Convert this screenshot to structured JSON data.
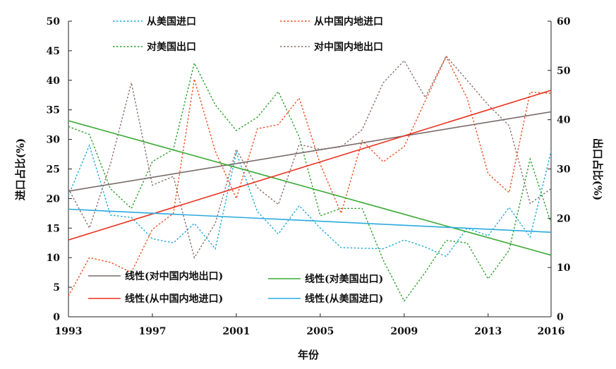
{
  "chart_data": {
    "type": "line",
    "x_title": "年份",
    "y_left_title": "进口占比(%)",
    "y_right_title": "出口占比(%)",
    "xlim": [
      1993,
      2016
    ],
    "ylim_left": [
      0,
      50
    ],
    "ylim_right": [
      0,
      60
    ],
    "x_ticks": [
      1993,
      1997,
      2001,
      2005,
      2009,
      2013,
      2016
    ],
    "y_left_ticks": [
      0,
      5,
      10,
      15,
      20,
      25,
      30,
      35,
      40,
      45,
      50
    ],
    "y_right_ticks": [
      0,
      10,
      20,
      30,
      40,
      50,
      60
    ],
    "x_tick_labels": [
      "1993",
      "1997",
      "2001",
      "2005",
      "2009",
      "2013",
      "2016"
    ],
    "y_left_tick_labels": [
      "0",
      "5",
      "10",
      "15",
      "20",
      "25",
      "30",
      "35",
      "40",
      "45",
      "50"
    ],
    "y_right_tick_labels": [
      "0",
      "10",
      "20",
      "30",
      "40",
      "50",
      "60"
    ],
    "grid": false,
    "series": [
      {
        "name": "从美国进口",
        "axis": "left",
        "style": "dotted",
        "color": "#1ba9d8",
        "x": [
          1993,
          1994,
          1995,
          1996,
          1997,
          1998,
          1999,
          2000,
          2001,
          2002,
          2003,
          2004,
          2005,
          2006,
          2007,
          2008,
          2009,
          2010,
          2011,
          2012,
          2013,
          2014,
          2015,
          2016
        ],
        "y": [
          20.5,
          29.0,
          17.2,
          16.8,
          13.2,
          12.5,
          15.8,
          11.5,
          27.8,
          17.8,
          14.0,
          18.8,
          15.0,
          11.7,
          11.6,
          11.5,
          13.0,
          11.8,
          10.2,
          15.0,
          13.7,
          18.5,
          13.5,
          28.0
        ]
      },
      {
        "name": "从中国内地进口",
        "axis": "left",
        "style": "dotted",
        "color": "#f05020",
        "x": [
          1993,
          1994,
          1995,
          1996,
          1997,
          1998,
          1999,
          2000,
          2001,
          2002,
          2003,
          2004,
          2005,
          2006,
          2007,
          2008,
          2009,
          2010,
          2011,
          2012,
          2013,
          2014,
          2015,
          2016
        ],
        "y": [
          3.5,
          10.0,
          9.2,
          7.5,
          14.8,
          17.5,
          40.2,
          28.0,
          20.0,
          31.8,
          32.5,
          37.0,
          25.8,
          17.5,
          29.8,
          26.2,
          28.8,
          36.5,
          44.0,
          37.0,
          24.2,
          21.0,
          38.0,
          37.8
        ]
      },
      {
        "name": "对美国出口",
        "axis": "right",
        "style": "dotted",
        "color": "#2ca02c",
        "x": [
          1993,
          1994,
          1995,
          1996,
          1997,
          1998,
          1999,
          2000,
          2001,
          2002,
          2003,
          2004,
          2005,
          2006,
          2007,
          2008,
          2009,
          2010,
          2011,
          2012,
          2013,
          2014,
          2015,
          2016
        ],
        "y": [
          38.6,
          37.0,
          26.0,
          22.0,
          31.5,
          34.0,
          51.5,
          43.0,
          37.8,
          40.5,
          45.7,
          36.5,
          20.5,
          22.0,
          22.0,
          11.5,
          3.2,
          9.0,
          15.5,
          15.0,
          7.7,
          13.5,
          32.0,
          19.0
        ]
      },
      {
        "name": "对中国内地出口",
        "axis": "right",
        "style": "dotted",
        "color": "#8c6e6e",
        "x": [
          1993,
          1994,
          1995,
          1996,
          1997,
          1998,
          1999,
          2000,
          2001,
          2002,
          2003,
          2004,
          2005,
          2006,
          2007,
          2008,
          2009,
          2010,
          2011,
          2012,
          2013,
          2014,
          2015,
          2016
        ],
        "y": [
          26.0,
          18.0,
          31.0,
          47.5,
          26.7,
          28.5,
          12.0,
          19.0,
          34.0,
          26.2,
          22.8,
          35.0,
          34.0,
          34.5,
          38.0,
          47.5,
          52.0,
          44.5,
          52.9,
          48.0,
          43.0,
          38.8,
          23.0,
          26.0
        ]
      },
      {
        "name": "线性(对中国内地出口)",
        "axis": "right",
        "style": "solid",
        "color": "#7a6a6a",
        "x": [
          1993,
          2016
        ],
        "y": [
          25.5,
          41.6
        ]
      },
      {
        "name": "线性(对美国出口)",
        "axis": "right",
        "style": "solid",
        "color": "#3aaa35",
        "x": [
          1993,
          2016
        ],
        "y": [
          39.8,
          12.5
        ]
      },
      {
        "name": "线性(从中国内地进口)",
        "axis": "left",
        "style": "solid",
        "color": "#e8301c",
        "x": [
          1993,
          2016
        ],
        "y": [
          13.0,
          38.3
        ]
      },
      {
        "name": "线性(从美国进口)",
        "axis": "left",
        "style": "solid",
        "color": "#2aaae0",
        "x": [
          1993,
          2016
        ],
        "y": [
          18.2,
          14.3
        ]
      }
    ],
    "legend_order": [
      0,
      1,
      2,
      3,
      4,
      5,
      6,
      7
    ]
  }
}
